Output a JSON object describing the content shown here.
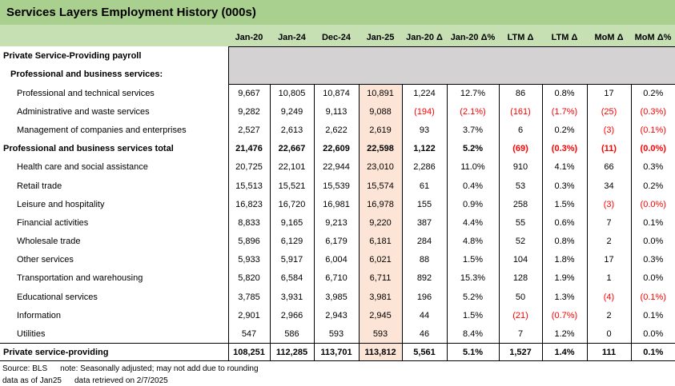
{
  "chart_data": {
    "type": "table",
    "title": "Services Layers Employment History (000s)",
    "columns": [
      "Jan-20",
      "Jan-24",
      "Dec-24",
      "Jan-25",
      "Jan-20 Δ",
      "Jan-20 Δ%",
      "LTM Δ",
      "LTM Δ",
      "MoM Δ",
      "MoM Δ%"
    ],
    "highlight_column": "Jan-25",
    "section_rows": [
      {
        "label": "Private Service-Providing payroll",
        "indent": 0
      },
      {
        "label": "Professional and business services:",
        "indent": 1
      }
    ],
    "rows": [
      {
        "label": "Professional and technical services",
        "indent": 2,
        "bold": false,
        "total": false,
        "values": [
          "9,667",
          "10,805",
          "10,874",
          "10,891",
          "1,224",
          "12.7%",
          "86",
          "0.8%",
          "17",
          "0.2%"
        ]
      },
      {
        "label": "Administrative and waste services",
        "indent": 2,
        "bold": false,
        "total": false,
        "values": [
          "9,282",
          "9,249",
          "9,113",
          "9,088",
          "(194)",
          "(2.1%)",
          "(161)",
          "(1.7%)",
          "(25)",
          "(0.3%)"
        ]
      },
      {
        "label": "Management of companies and enterprises",
        "indent": 2,
        "bold": false,
        "total": false,
        "values": [
          "2,527",
          "2,613",
          "2,622",
          "2,619",
          "93",
          "3.7%",
          "6",
          "0.2%",
          "(3)",
          "(0.1%)"
        ]
      },
      {
        "label": "Professional and business services total",
        "indent": 0,
        "bold": true,
        "total": false,
        "values": [
          "21,476",
          "22,667",
          "22,609",
          "22,598",
          "1,122",
          "5.2%",
          "(69)",
          "(0.3%)",
          "(11)",
          "(0.0%)"
        ]
      },
      {
        "label": "Health care and social assistance",
        "indent": 2,
        "bold": false,
        "total": false,
        "values": [
          "20,725",
          "22,101",
          "22,944",
          "23,010",
          "2,286",
          "11.0%",
          "910",
          "4.1%",
          "66",
          "0.3%"
        ]
      },
      {
        "label": "Retail trade",
        "indent": 2,
        "bold": false,
        "total": false,
        "values": [
          "15,513",
          "15,521",
          "15,539",
          "15,574",
          "61",
          "0.4%",
          "53",
          "0.3%",
          "34",
          "0.2%"
        ]
      },
      {
        "label": "Leisure and hospitality",
        "indent": 2,
        "bold": false,
        "total": false,
        "values": [
          "16,823",
          "16,720",
          "16,981",
          "16,978",
          "155",
          "0.9%",
          "258",
          "1.5%",
          "(3)",
          "(0.0%)"
        ]
      },
      {
        "label": "Financial activities",
        "indent": 2,
        "bold": false,
        "total": false,
        "values": [
          "8,833",
          "9,165",
          "9,213",
          "9,220",
          "387",
          "4.4%",
          "55",
          "0.6%",
          "7",
          "0.1%"
        ]
      },
      {
        "label": "Wholesale trade",
        "indent": 2,
        "bold": false,
        "total": false,
        "values": [
          "5,896",
          "6,129",
          "6,179",
          "6,181",
          "284",
          "4.8%",
          "52",
          "0.8%",
          "2",
          "0.0%"
        ]
      },
      {
        "label": "Other services",
        "indent": 2,
        "bold": false,
        "total": false,
        "values": [
          "5,933",
          "5,917",
          "6,004",
          "6,021",
          "88",
          "1.5%",
          "104",
          "1.8%",
          "17",
          "0.3%"
        ]
      },
      {
        "label": "Transportation and warehousing",
        "indent": 2,
        "bold": false,
        "total": false,
        "values": [
          "5,820",
          "6,584",
          "6,710",
          "6,711",
          "892",
          "15.3%",
          "128",
          "1.9%",
          "1",
          "0.0%"
        ]
      },
      {
        "label": "Educational services",
        "indent": 2,
        "bold": false,
        "total": false,
        "values": [
          "3,785",
          "3,931",
          "3,985",
          "3,981",
          "196",
          "5.2%",
          "50",
          "1.3%",
          "(4)",
          "(0.1%)"
        ]
      },
      {
        "label": "Information",
        "indent": 2,
        "bold": false,
        "total": false,
        "values": [
          "2,901",
          "2,966",
          "2,943",
          "2,945",
          "44",
          "1.5%",
          "(21)",
          "(0.7%)",
          "2",
          "0.1%"
        ]
      },
      {
        "label": "Utilities",
        "indent": 2,
        "bold": false,
        "total": false,
        "values": [
          "547",
          "586",
          "593",
          "593",
          "46",
          "8.4%",
          "7",
          "1.2%",
          "0",
          "0.0%"
        ]
      },
      {
        "label": "Private service-providing",
        "indent": 0,
        "bold": true,
        "total": true,
        "values": [
          "108,251",
          "112,285",
          "113,701",
          "113,812",
          "5,561",
          "5.1%",
          "1,527",
          "1.4%",
          "111",
          "0.1%"
        ]
      }
    ],
    "footnotes": [
      "Source: BLS",
      "note: Seasonally adjusted; may not add due to rounding",
      "data as of Jan25",
      "data retrieved on 2/7/2025"
    ]
  },
  "colors": {
    "title_bar": "#a9d08e",
    "header_band": "#c6e0b4",
    "block_gray": "#d4d2d2",
    "highlight": "#fce4d6",
    "negative": "#ff0000"
  }
}
